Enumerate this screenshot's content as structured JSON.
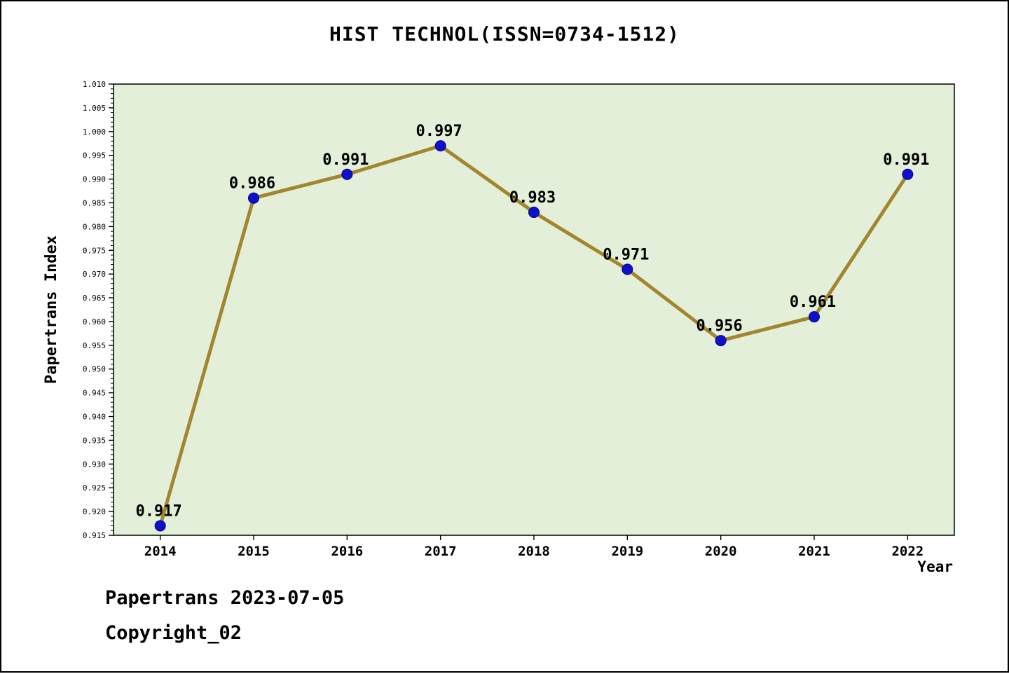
{
  "title": "HIST TECHNOL(ISSN=0734-1512)",
  "footer": {
    "line1": "Papertrans 2023-07-05",
    "line2": "Copyright_02"
  },
  "chart_data": {
    "type": "line",
    "title": "HIST TECHNOL(ISSN=0734-1512)",
    "xlabel": "Year",
    "ylabel": "Papertrans Index",
    "categories": [
      "2014",
      "2015",
      "2016",
      "2017",
      "2018",
      "2019",
      "2020",
      "2021",
      "2022"
    ],
    "values": [
      0.917,
      0.986,
      0.991,
      0.997,
      0.983,
      0.971,
      0.956,
      0.961,
      0.991
    ],
    "value_labels": [
      "0.917",
      "0.986",
      "0.991",
      "0.997",
      "0.983",
      "0.971",
      "0.956",
      "0.961",
      "0.991"
    ],
    "ylim": [
      0.915,
      1.01
    ],
    "ytick_step": 0.005,
    "ytick_minor_step": 0.001,
    "grid": false,
    "legend_position": "none",
    "colors": {
      "line": "#a1862f",
      "marker": "#1010cc",
      "marker_edge": "#00008b",
      "plot_background": "#e3efd8",
      "axis": "#000000",
      "text": "#000000"
    }
  }
}
